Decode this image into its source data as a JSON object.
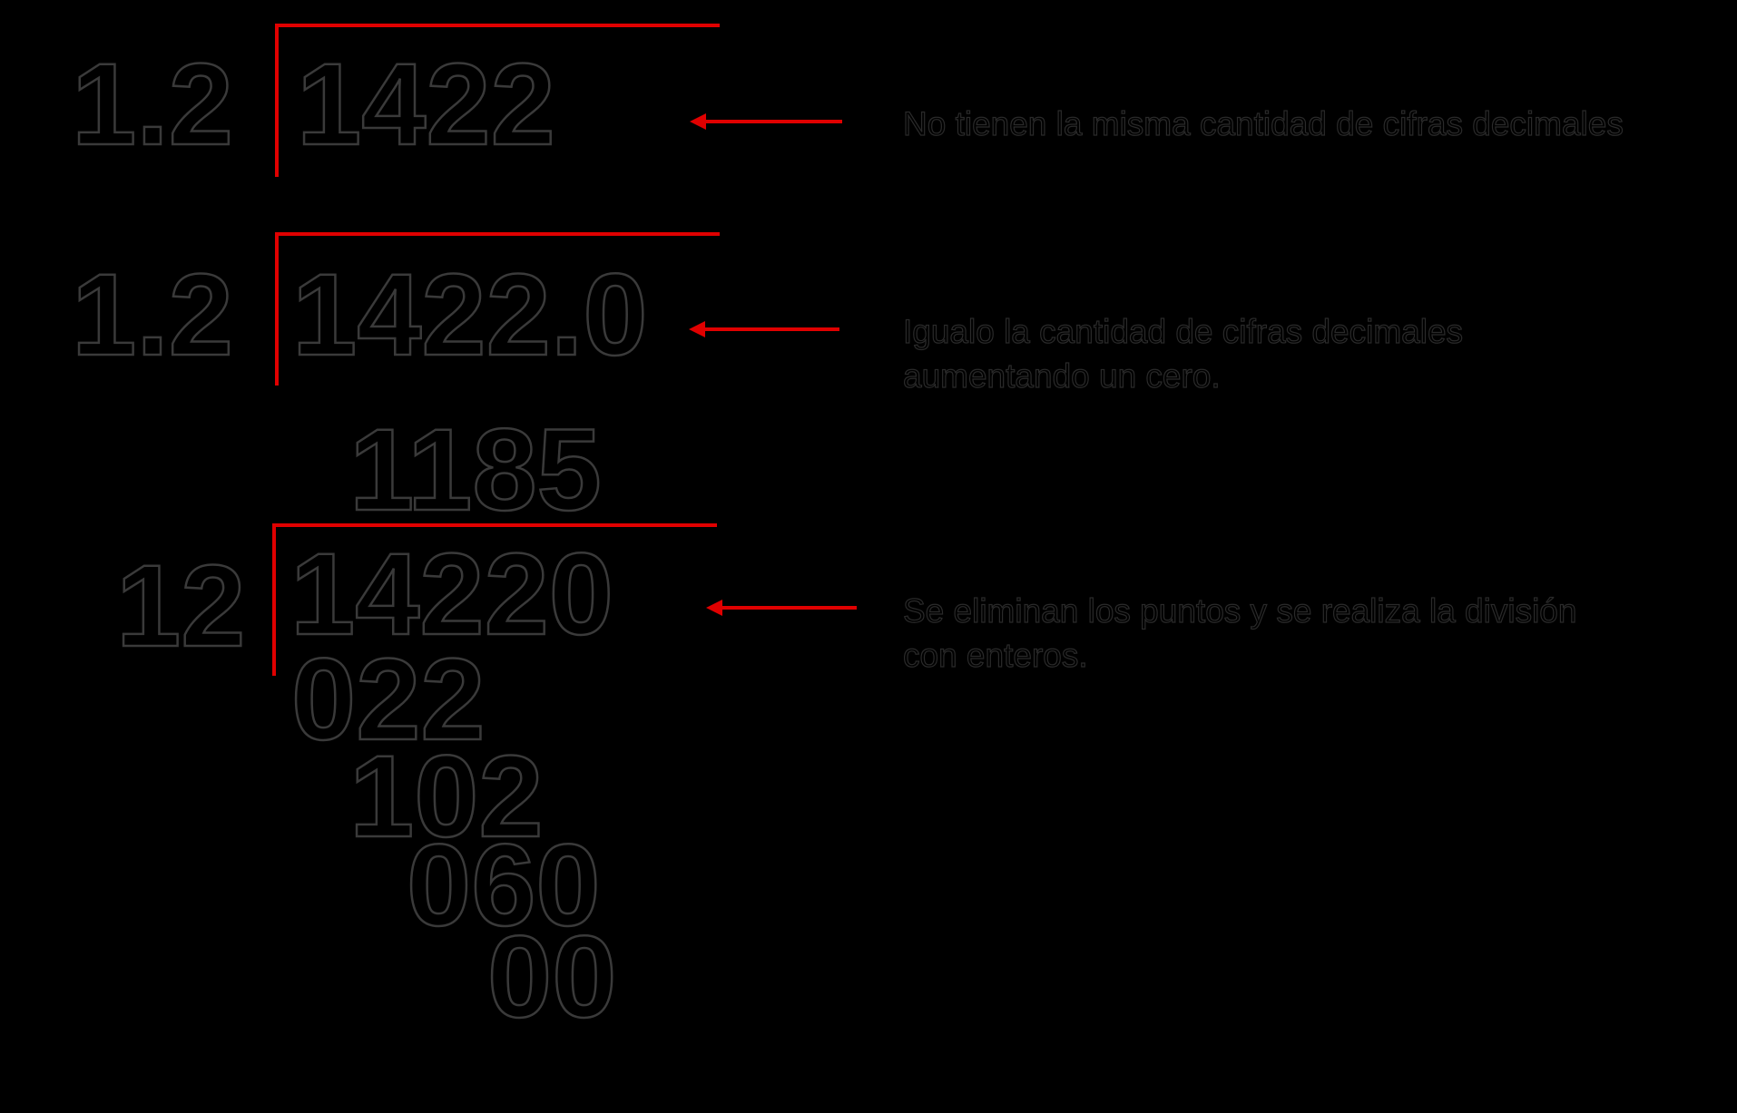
{
  "steps": [
    {
      "divisor": "1.2",
      "dividend": "1422",
      "note": [
        "No tienen la misma cantidad de cifras decimales"
      ]
    },
    {
      "divisor": "1.2",
      "dividend": "1422.0",
      "note": [
        "Igualo la cantidad de cifras decimales",
        "aumentando un cero."
      ]
    },
    {
      "divisor": "12",
      "dividend": "14220",
      "quotient": "1185",
      "note": [
        "Se eliminan los puntos y se realiza la división",
        "con enteros."
      ]
    }
  ],
  "remainders": [
    "022",
    "102",
    "060",
    "00"
  ]
}
